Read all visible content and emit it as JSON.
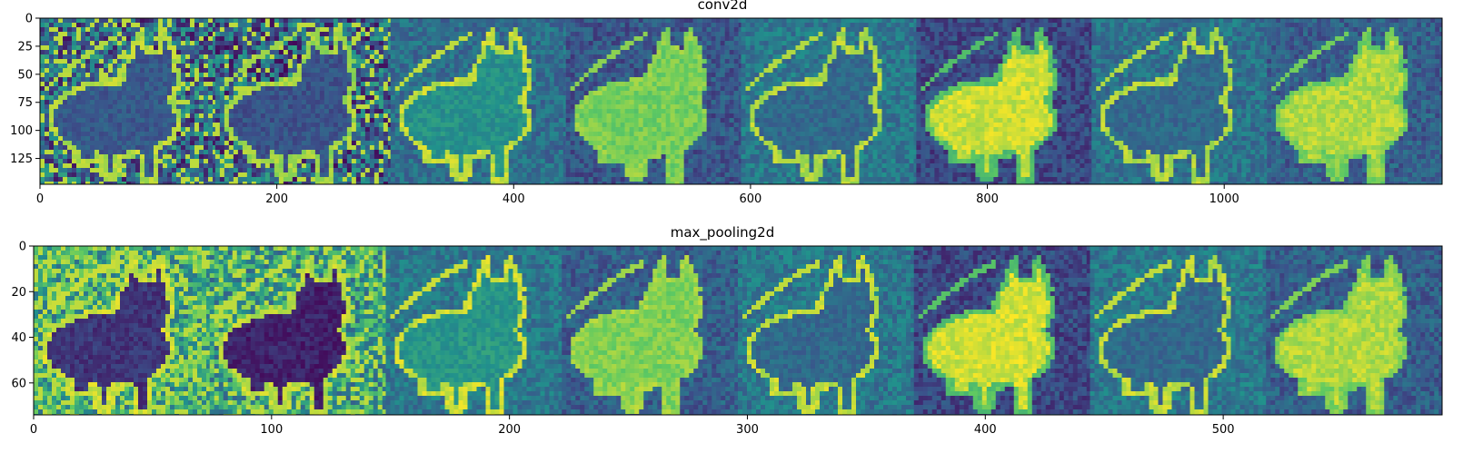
{
  "figure": {
    "background": "#ffffff"
  },
  "chart_data": [
    {
      "type": "heatmap",
      "title": "conv2d",
      "colormap": "viridis",
      "colormap_colors": [
        "#440154",
        "#3b528b",
        "#21918c",
        "#5ec962",
        "#fde725"
      ],
      "feature_maps": 8,
      "xlim": [
        0,
        1184
      ],
      "ylim": [
        148,
        0
      ],
      "xticks": [
        0,
        200,
        400,
        600,
        800,
        1000
      ],
      "yticks": [
        0,
        25,
        50,
        75,
        100,
        125
      ],
      "tile_base_level": [
        0.32,
        0.3,
        0.36,
        0.27,
        0.4,
        0.22,
        0.38,
        0.3
      ],
      "tile_subject_level": [
        0.28,
        0.26,
        0.5,
        0.78,
        0.34,
        0.92,
        0.34,
        0.88
      ],
      "tile_edge_level": [
        0.88,
        0.85,
        0.9,
        0.82,
        0.88,
        0.7,
        0.88,
        0.78
      ]
    },
    {
      "type": "heatmap",
      "title": "max_pooling2d",
      "colormap": "viridis",
      "colormap_colors": [
        "#440154",
        "#3b528b",
        "#21918c",
        "#5ec962",
        "#fde725"
      ],
      "feature_maps": 8,
      "xlim": [
        0,
        592
      ],
      "ylim": [
        74,
        0
      ],
      "xticks": [
        0,
        100,
        200,
        300,
        400,
        500
      ],
      "yticks": [
        0,
        20,
        40,
        60
      ],
      "tile_base_level": [
        0.62,
        0.58,
        0.4,
        0.3,
        0.4,
        0.22,
        0.4,
        0.3
      ],
      "tile_subject_level": [
        0.16,
        0.1,
        0.52,
        0.8,
        0.34,
        0.93,
        0.34,
        0.88
      ],
      "tile_edge_level": [
        0.92,
        0.9,
        0.92,
        0.85,
        0.9,
        0.72,
        0.9,
        0.8
      ]
    }
  ]
}
